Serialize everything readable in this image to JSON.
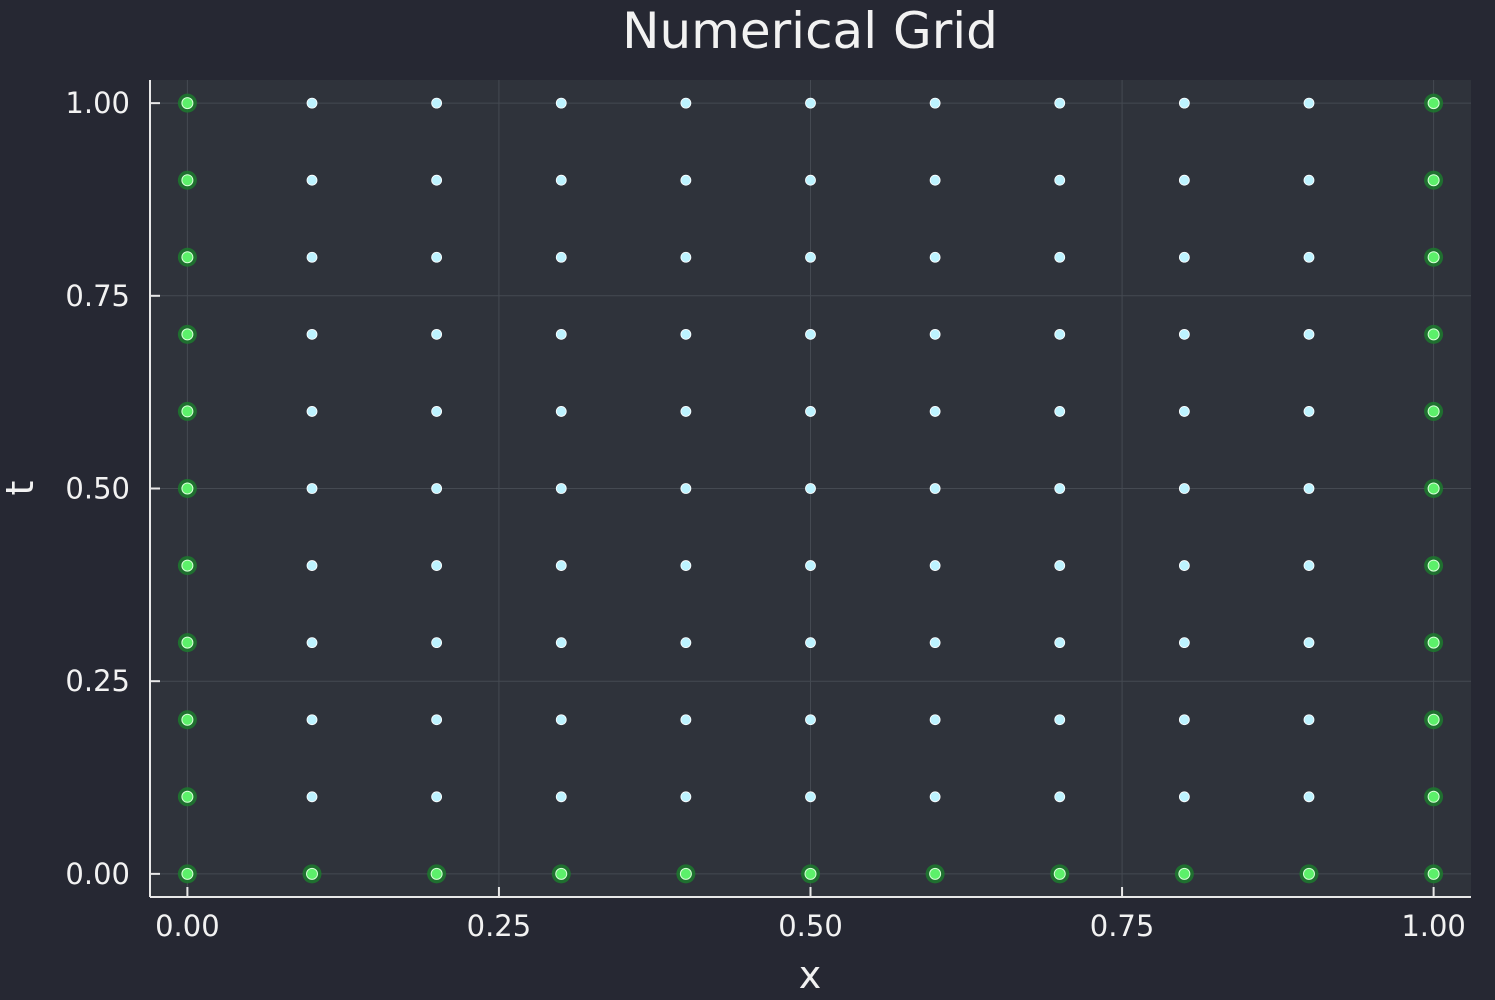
{
  "chart_data": {
    "type": "scatter",
    "title": "Numerical Grid",
    "xlabel": "x",
    "ylabel": "t",
    "xlim": [
      -0.03,
      1.03
    ],
    "ylim": [
      -0.03,
      1.03
    ],
    "xticks": [
      "0.00",
      "0.25",
      "0.50",
      "0.75",
      "1.00"
    ],
    "yticks": [
      "0.00",
      "0.25",
      "0.50",
      "0.75",
      "1.00"
    ],
    "grid": true,
    "legend": false,
    "colors": {
      "background": "#262833",
      "plot_area": "#2f333b",
      "grid": "#454a52",
      "axis": "#e8e8e8",
      "interior_point": "#bdf3ff",
      "boundary_halo": "#1c7a2e",
      "boundary_point": "#5cf06a"
    },
    "x_values": [
      0.0,
      0.1,
      0.2,
      0.3,
      0.4,
      0.5,
      0.6,
      0.7,
      0.8,
      0.9,
      1.0
    ],
    "t_values": [
      0.0,
      0.1,
      0.2,
      0.3,
      0.4,
      0.5,
      0.6,
      0.7,
      0.8,
      0.9,
      1.0
    ],
    "series": [
      {
        "role": "interior",
        "points": "x in {0.1..0.9}, t in {0.1..1.0}"
      },
      {
        "role": "boundary",
        "points": "x = 0, x = 1, or t = 0"
      }
    ]
  }
}
